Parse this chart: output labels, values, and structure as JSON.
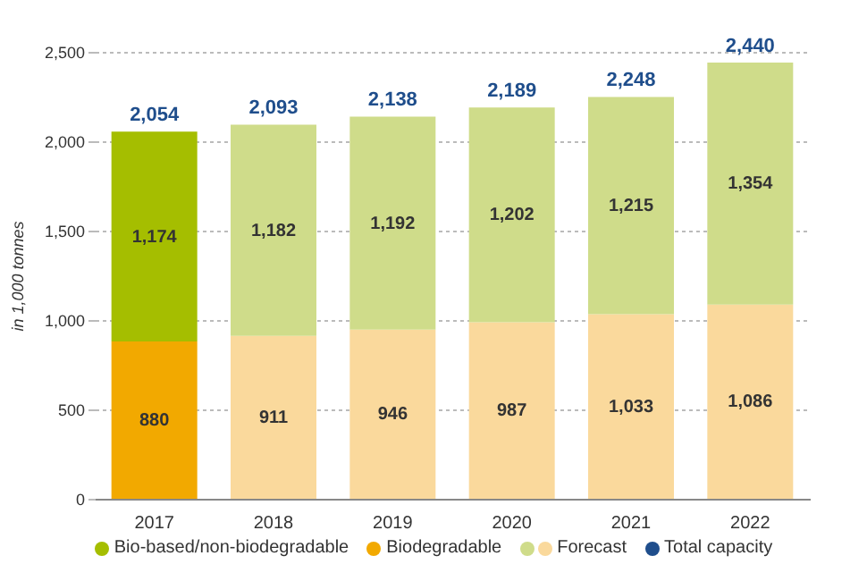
{
  "chart_data": {
    "type": "bar",
    "stacked": true,
    "ylabel": "in 1,000 tonnes",
    "categories": [
      "2017",
      "2018",
      "2019",
      "2020",
      "2021",
      "2022"
    ],
    "series": [
      {
        "name": "Biodegradable",
        "color": "#f2a900",
        "colors": [
          "#f2a900",
          "#fad99c",
          "#fad99c",
          "#fad99c",
          "#fad99c",
          "#fad99c"
        ],
        "values": [
          880,
          911,
          946,
          987,
          1033,
          1086
        ],
        "value_labels": [
          "880",
          "911",
          "946",
          "987",
          "1,033",
          "1,086"
        ]
      },
      {
        "name": "Bio-based/non-biodegradable",
        "color": "#a5be00",
        "colors": [
          "#a5be00",
          "#cfdc8a",
          "#cfdc8a",
          "#cfdc8a",
          "#cfdc8a",
          "#cfdc8a"
        ],
        "values": [
          1174,
          1182,
          1192,
          1202,
          1215,
          1354
        ],
        "value_labels": [
          "1,174",
          "1,182",
          "1,192",
          "1,202",
          "1,215",
          "1,354"
        ]
      }
    ],
    "totals": [
      "2,054",
      "2,093",
      "2,138",
      "2,189",
      "2,248",
      "2,440"
    ],
    "annotations": [
      "Forecast",
      "Total capacity"
    ],
    "ylim": [
      0,
      2500
    ],
    "yticks": [
      0,
      {
        "value": 500,
        "label": "500"
      },
      {
        "value": 1000,
        "label": "1,000"
      },
      {
        "value": 1500,
        "label": "1,500"
      },
      {
        "value": 2000,
        "label": "2,000"
      },
      {
        "value": 2500,
        "label": "2,500"
      }
    ],
    "grid": "y",
    "legend": "bottom"
  }
}
